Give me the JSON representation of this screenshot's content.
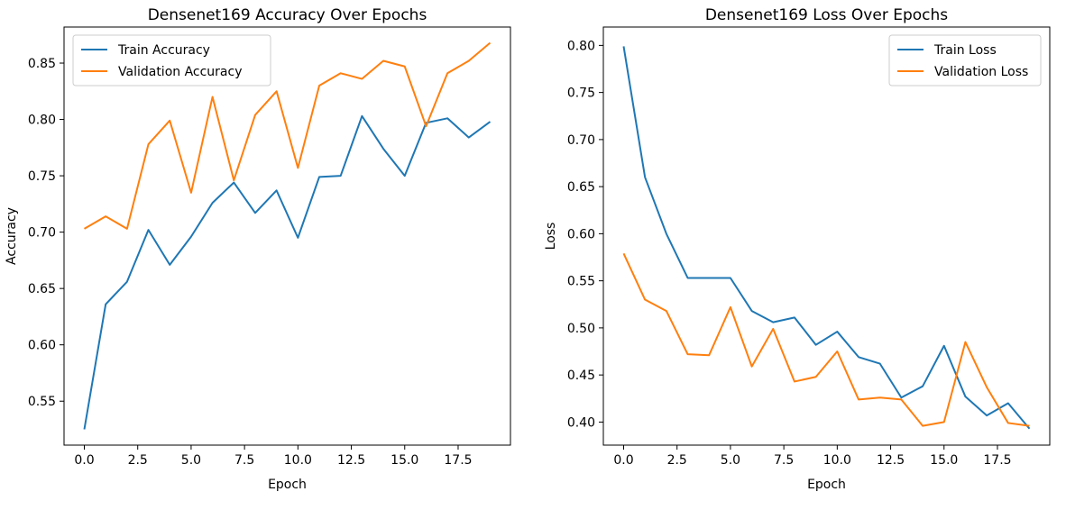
{
  "chart_data": [
    {
      "type": "line",
      "title": "Densenet169 Accuracy Over Epochs",
      "xlabel": "Epoch",
      "ylabel": "Accuracy",
      "xlim": [
        -0.95,
        19.95
      ],
      "ylim": [
        0.511,
        0.882
      ],
      "xticks": [
        0.0,
        2.5,
        5.0,
        7.5,
        10.0,
        12.5,
        15.0,
        17.5
      ],
      "xtick_labels": [
        "0.0",
        "2.5",
        "5.0",
        "7.5",
        "10.0",
        "12.5",
        "15.0",
        "17.5"
      ],
      "yticks": [
        0.55,
        0.6,
        0.65,
        0.7,
        0.75,
        0.8,
        0.85
      ],
      "ytick_labels": [
        "0.55",
        "0.60",
        "0.65",
        "0.70",
        "0.75",
        "0.80",
        "0.85"
      ],
      "grid": false,
      "legend_position": "upper-left",
      "x": [
        0,
        1,
        2,
        3,
        4,
        5,
        6,
        7,
        8,
        9,
        10,
        11,
        12,
        13,
        14,
        15,
        16,
        17,
        18,
        19
      ],
      "series": [
        {
          "name": "Train Accuracy",
          "color": "#1f77b4",
          "values": [
            0.525,
            0.636,
            0.656,
            0.702,
            0.671,
            0.696,
            0.726,
            0.744,
            0.717,
            0.737,
            0.695,
            0.749,
            0.75,
            0.803,
            0.774,
            0.75,
            0.797,
            0.801,
            0.784,
            0.798
          ]
        },
        {
          "name": "Validation Accuracy",
          "color": "#ff7f0e",
          "values": [
            0.703,
            0.714,
            0.703,
            0.778,
            0.799,
            0.735,
            0.82,
            0.746,
            0.804,
            0.825,
            0.757,
            0.83,
            0.841,
            0.836,
            0.852,
            0.847,
            0.794,
            0.841,
            0.852,
            0.868
          ]
        }
      ]
    },
    {
      "type": "line",
      "title": "Densenet169 Loss Over Epochs",
      "xlabel": "Epoch",
      "ylabel": "Loss",
      "xlim": [
        -0.95,
        19.95
      ],
      "ylim": [
        0.3755,
        0.8195
      ],
      "xticks": [
        0.0,
        2.5,
        5.0,
        7.5,
        10.0,
        12.5,
        15.0,
        17.5
      ],
      "xtick_labels": [
        "0.0",
        "2.5",
        "5.0",
        "7.5",
        "10.0",
        "12.5",
        "15.0",
        "17.5"
      ],
      "yticks": [
        0.4,
        0.45,
        0.5,
        0.55,
        0.6,
        0.65,
        0.7,
        0.75,
        0.8
      ],
      "ytick_labels": [
        "0.40",
        "0.45",
        "0.50",
        "0.55",
        "0.60",
        "0.65",
        "0.70",
        "0.75",
        "0.80"
      ],
      "grid": false,
      "legend_position": "upper-right",
      "x": [
        0,
        1,
        2,
        3,
        4,
        5,
        6,
        7,
        8,
        9,
        10,
        11,
        12,
        13,
        14,
        15,
        16,
        17,
        18,
        19
      ],
      "series": [
        {
          "name": "Train Loss",
          "color": "#1f77b4",
          "values": [
            0.799,
            0.66,
            0.6,
            0.553,
            0.553,
            0.553,
            0.518,
            0.506,
            0.511,
            0.482,
            0.496,
            0.469,
            0.462,
            0.426,
            0.438,
            0.481,
            0.427,
            0.407,
            0.42,
            0.393
          ]
        },
        {
          "name": "Validation Loss",
          "color": "#ff7f0e",
          "values": [
            0.579,
            0.53,
            0.518,
            0.472,
            0.471,
            0.522,
            0.459,
            0.499,
            0.443,
            0.448,
            0.475,
            0.424,
            0.426,
            0.424,
            0.396,
            0.4,
            0.485,
            0.437,
            0.399,
            0.396
          ]
        }
      ]
    }
  ]
}
